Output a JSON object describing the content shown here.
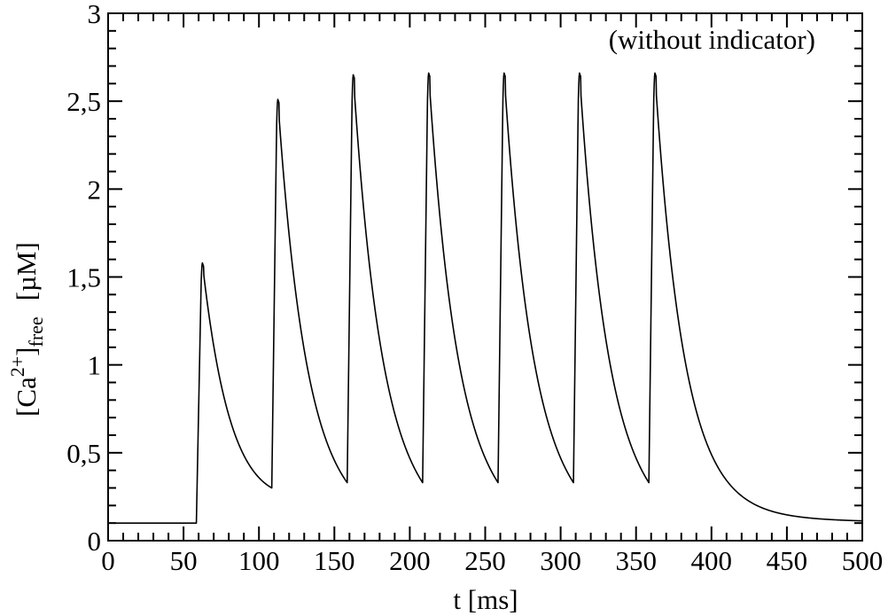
{
  "chart_data": {
    "type": "line",
    "title": "",
    "annotation": "(without indicator)",
    "xlabel": "t [ms]",
    "ylabel": {
      "main": "[Ca",
      "sup": "2+",
      "close": "]",
      "sub": "free",
      "unit": "[µM]"
    },
    "xlim": [
      0,
      500
    ],
    "ylim": [
      0,
      3
    ],
    "x_ticks": [
      0,
      50,
      100,
      150,
      200,
      250,
      300,
      350,
      400,
      450,
      500
    ],
    "x_tick_labels": [
      "0",
      "50",
      "100",
      "150",
      "200",
      "250",
      "300",
      "350",
      "400",
      "450",
      "500"
    ],
    "y_ticks": [
      0,
      0.5,
      1,
      1.5,
      2,
      2.5,
      3
    ],
    "y_tick_labels": [
      "0",
      "0,5",
      "1",
      "1,5",
      "2",
      "2,5",
      "3"
    ],
    "x_minor_step": 10,
    "y_minor_step": 0.1,
    "grid": false,
    "series": [
      {
        "name": "[Ca2+]free",
        "color": "#000000",
        "baseline": 0.1,
        "final_value": 0.11,
        "spikes": [
          {
            "onset": 58.5,
            "peak_time": 62.5,
            "peak": 1.58,
            "trough_before": 0.1
          },
          {
            "onset": 108.5,
            "peak_time": 112.5,
            "peak": 2.51,
            "trough_before": 0.3
          },
          {
            "onset": 158.5,
            "peak_time": 162.5,
            "peak": 2.65,
            "trough_before": 0.33
          },
          {
            "onset": 208.5,
            "peak_time": 212.5,
            "peak": 2.66,
            "trough_before": 0.33
          },
          {
            "onset": 258.5,
            "peak_time": 262.5,
            "peak": 2.66,
            "trough_before": 0.33
          },
          {
            "onset": 308.5,
            "peak_time": 312.5,
            "peak": 2.66,
            "trough_before": 0.33
          },
          {
            "onset": 358.5,
            "peak_time": 362.5,
            "peak": 2.66,
            "trough_before": 0.33
          }
        ],
        "decay_tau_fast_ms": 19,
        "decay_tau_slow_ms": 70,
        "decay_slow_fraction": 0.03
      }
    ]
  }
}
